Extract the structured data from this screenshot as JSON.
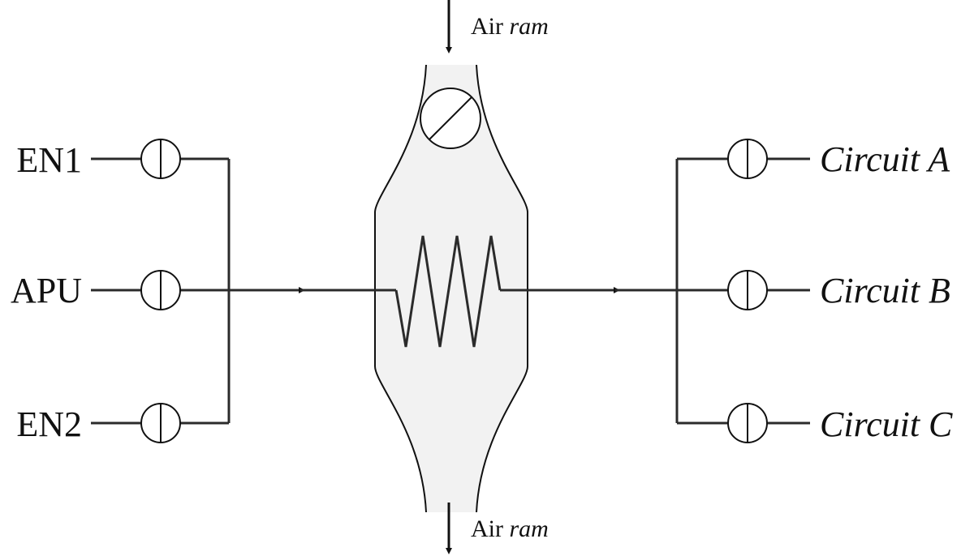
{
  "diagram": {
    "sources": [
      {
        "id": "en1",
        "label": "EN1"
      },
      {
        "id": "apu",
        "label": "APU"
      },
      {
        "id": "en2",
        "label": "EN2"
      }
    ],
    "outputs": [
      {
        "id": "circuit-a",
        "label_main": "Circuit",
        "label_letter": "A"
      },
      {
        "id": "circuit-b",
        "label_main": "Circuit",
        "label_letter": "B"
      },
      {
        "id": "circuit-c",
        "label_main": "Circuit",
        "label_letter": "C"
      }
    ],
    "air_inlet": {
      "word": "Air",
      "emphasis": "ram"
    },
    "air_outlet": {
      "word": "Air",
      "emphasis": "ram"
    }
  },
  "colors": {
    "line": "#2b2b2b",
    "duct_fill": "#f2f2f2",
    "outline": "#111111"
  }
}
